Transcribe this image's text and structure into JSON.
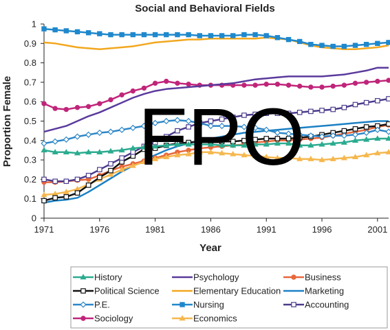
{
  "chart_data": {
    "type": "line",
    "title": "Social and Behavioral Fields",
    "xlabel": "Year",
    "ylabel": "Proportion Female",
    "xlim": [
      1971,
      2002
    ],
    "ylim": [
      0,
      1
    ],
    "x_ticks": [
      "1971",
      "1976",
      "1981",
      "1986",
      "1991",
      "1996",
      "2001"
    ],
    "y_ticks": [
      "0",
      "0.1",
      "0.2",
      "0.3",
      "0.4",
      "0.5",
      "0.6",
      "0.7",
      "0.8",
      "0.9",
      "1"
    ],
    "grid": false,
    "legend_position": "bottom",
    "watermark": "FPO",
    "x": [
      1971,
      1972,
      1973,
      1974,
      1975,
      1976,
      1977,
      1978,
      1979,
      1980,
      1981,
      1982,
      1983,
      1984,
      1985,
      1986,
      1987,
      1988,
      1989,
      1990,
      1991,
      1992,
      1993,
      1994,
      1995,
      1996,
      1997,
      1998,
      1999,
      2000,
      2001,
      2002
    ],
    "series": [
      {
        "name": "History",
        "color": "#2bab8f",
        "marker": "triangle",
        "values": [
          0.35,
          0.34,
          0.34,
          0.335,
          0.34,
          0.34,
          0.345,
          0.35,
          0.36,
          0.365,
          0.37,
          0.375,
          0.38,
          0.38,
          0.38,
          0.38,
          0.375,
          0.375,
          0.375,
          0.38,
          0.38,
          0.385,
          0.385,
          0.375,
          0.375,
          0.38,
          0.385,
          0.39,
          0.4,
          0.405,
          0.41,
          0.41
        ]
      },
      {
        "name": "Political Science",
        "color": "#111111",
        "marker": "square-open",
        "values": [
          0.09,
          0.105,
          0.11,
          0.13,
          0.17,
          0.21,
          0.245,
          0.29,
          0.32,
          0.355,
          0.36,
          0.375,
          0.385,
          0.39,
          0.395,
          0.395,
          0.395,
          0.395,
          0.4,
          0.405,
          0.41,
          0.41,
          0.41,
          0.415,
          0.42,
          0.43,
          0.44,
          0.45,
          0.46,
          0.47,
          0.475,
          0.485
        ]
      },
      {
        "name": "P.E.",
        "color": "#2c86c8",
        "marker": "diamond-open",
        "values": [
          0.385,
          0.395,
          0.405,
          0.42,
          0.43,
          0.44,
          0.445,
          0.455,
          0.465,
          0.475,
          0.49,
          0.5,
          0.505,
          0.5,
          0.49,
          0.475,
          0.475,
          0.475,
          0.47,
          0.465,
          0.455,
          0.44,
          0.435,
          0.43,
          0.425,
          0.42,
          0.425,
          0.425,
          0.43,
          0.44,
          0.455,
          0.445
        ]
      },
      {
        "name": "Sociology",
        "color": "#c0257a",
        "marker": "circle",
        "values": [
          0.59,
          0.565,
          0.56,
          0.57,
          0.575,
          0.59,
          0.61,
          0.635,
          0.655,
          0.67,
          0.695,
          0.705,
          0.695,
          0.69,
          0.685,
          0.685,
          0.685,
          0.685,
          0.685,
          0.685,
          0.69,
          0.69,
          0.685,
          0.68,
          0.675,
          0.675,
          0.68,
          0.685,
          0.695,
          0.7,
          0.705,
          0.71
        ]
      },
      {
        "name": "Psychology",
        "color": "#5a3a9c",
        "marker": "none",
        "values": [
          0.445,
          0.46,
          0.475,
          0.5,
          0.525,
          0.545,
          0.57,
          0.595,
          0.62,
          0.64,
          0.655,
          0.665,
          0.67,
          0.675,
          0.68,
          0.685,
          0.69,
          0.695,
          0.705,
          0.715,
          0.72,
          0.725,
          0.73,
          0.73,
          0.73,
          0.73,
          0.735,
          0.74,
          0.75,
          0.76,
          0.775,
          0.775
        ]
      },
      {
        "name": "Elementary Education",
        "color": "#f2a71e",
        "marker": "none",
        "values": [
          0.905,
          0.9,
          0.89,
          0.88,
          0.875,
          0.87,
          0.875,
          0.88,
          0.885,
          0.895,
          0.905,
          0.91,
          0.915,
          0.92,
          0.92,
          0.925,
          0.925,
          0.925,
          0.925,
          0.925,
          0.93,
          0.925,
          0.92,
          0.905,
          0.89,
          0.88,
          0.875,
          0.87,
          0.87,
          0.875,
          0.88,
          0.89
        ]
      },
      {
        "name": "Nursing",
        "color": "#1f88cc",
        "marker": "square",
        "values": [
          0.975,
          0.97,
          0.965,
          0.96,
          0.955,
          0.95,
          0.945,
          0.945,
          0.945,
          0.945,
          0.945,
          0.945,
          0.945,
          0.945,
          0.94,
          0.94,
          0.94,
          0.94,
          0.945,
          0.945,
          0.94,
          0.93,
          0.92,
          0.91,
          0.895,
          0.89,
          0.885,
          0.885,
          0.89,
          0.895,
          0.9,
          0.905
        ]
      },
      {
        "name": "Economics",
        "color": "#f5b74e",
        "marker": "triangle",
        "values": [
          0.12,
          0.125,
          0.135,
          0.15,
          0.175,
          0.2,
          0.225,
          0.25,
          0.27,
          0.29,
          0.305,
          0.315,
          0.325,
          0.33,
          0.34,
          0.34,
          0.335,
          0.33,
          0.325,
          0.32,
          0.315,
          0.31,
          0.31,
          0.305,
          0.305,
          0.3,
          0.305,
          0.31,
          0.315,
          0.325,
          0.335,
          0.34
        ]
      },
      {
        "name": "Business",
        "color": "#e8673a",
        "marker": "circle",
        "values": [
          0.185,
          0.185,
          0.19,
          0.195,
          0.2,
          0.22,
          0.245,
          0.265,
          0.28,
          0.295,
          0.31,
          0.325,
          0.34,
          0.35,
          0.36,
          0.365,
          0.37,
          0.375,
          0.38,
          0.39,
          0.395,
          0.4,
          0.4,
          0.405,
          0.41,
          0.415,
          0.425,
          0.435,
          0.445,
          0.455,
          0.47,
          0.48
        ]
      },
      {
        "name": "Marketing",
        "color": "#1a80c4",
        "marker": "none",
        "values": [
          0.08,
          0.09,
          0.095,
          0.105,
          0.135,
          0.17,
          0.205,
          0.24,
          0.27,
          0.3,
          0.325,
          0.35,
          0.37,
          0.385,
          0.4,
          0.41,
          0.42,
          0.43,
          0.44,
          0.445,
          0.45,
          0.455,
          0.46,
          0.465,
          0.47,
          0.475,
          0.48,
          0.485,
          0.49,
          0.495,
          0.5,
          0.5
        ]
      },
      {
        "name": "Accounting",
        "color": "#4b3a8c",
        "marker": "square-open",
        "values": [
          0.2,
          0.19,
          0.19,
          0.2,
          0.22,
          0.25,
          0.28,
          0.31,
          0.34,
          0.37,
          0.39,
          0.42,
          0.45,
          0.47,
          0.49,
          0.5,
          0.51,
          0.52,
          0.53,
          0.535,
          0.54,
          0.54,
          0.54,
          0.545,
          0.55,
          0.555,
          0.56,
          0.57,
          0.585,
          0.595,
          0.605,
          0.615
        ]
      }
    ],
    "legend_order": [
      [
        "History",
        "Psychology",
        "Business"
      ],
      [
        "Political Science",
        "Elementary Education",
        "Marketing"
      ],
      [
        "P.E.",
        "Nursing",
        "Accounting"
      ],
      [
        "Sociology",
        "Economics"
      ]
    ]
  }
}
